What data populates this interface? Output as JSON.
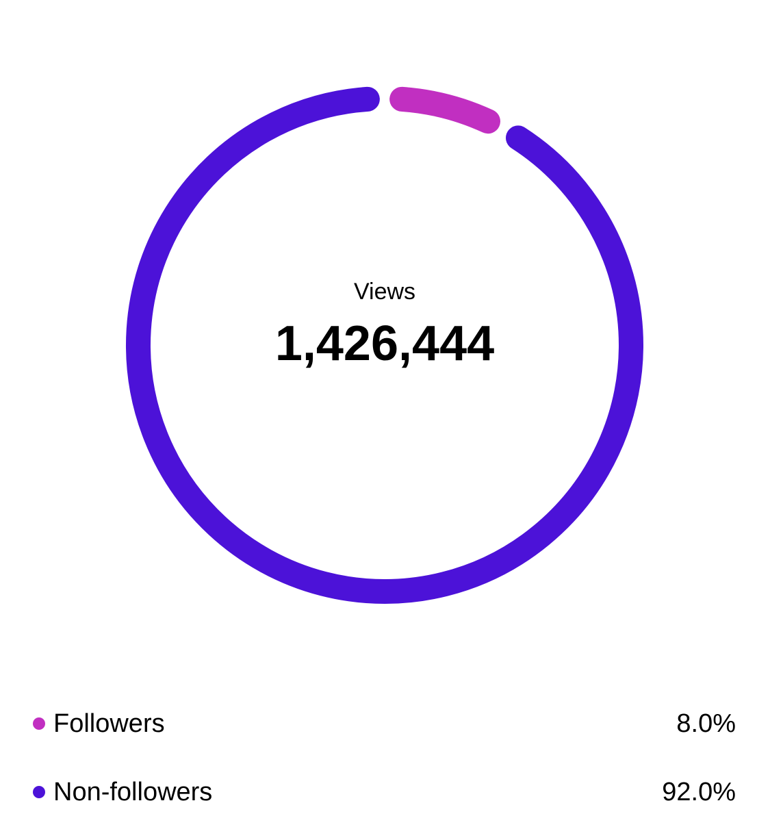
{
  "chart_data": {
    "type": "donut",
    "center_label": "Views",
    "total": {
      "value": 1426444,
      "label": "1,426,444"
    },
    "categories": [
      "Followers",
      "Non-followers"
    ],
    "values": [
      8.0,
      92.0
    ],
    "value_labels": [
      "8.0%",
      "92.0%"
    ],
    "colors": [
      "#c12fc1",
      "#4c12d8"
    ]
  }
}
